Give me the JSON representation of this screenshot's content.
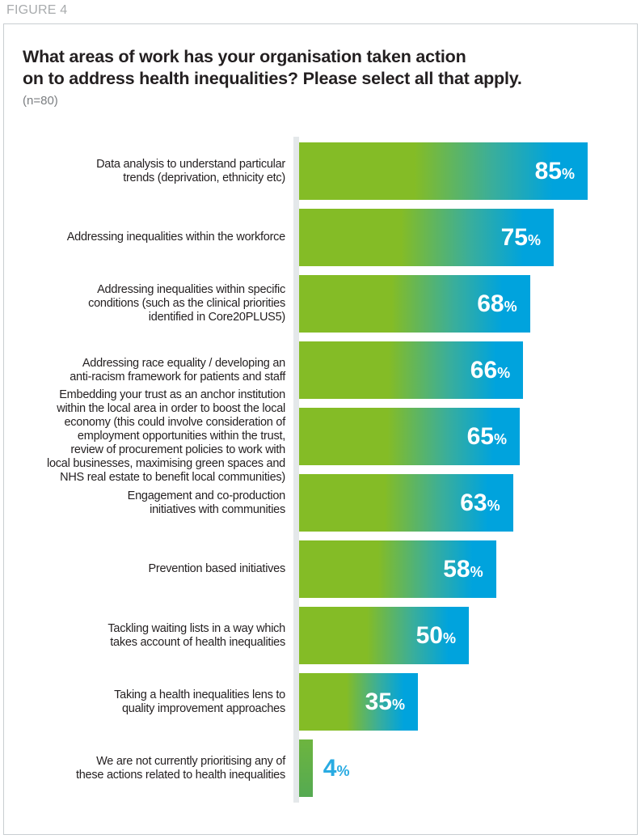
{
  "figure_label": "FIGURE 4",
  "chart_data": {
    "type": "bar",
    "orientation": "horizontal",
    "title_line1": "What areas of work has your organisation taken action",
    "title_line2": "on to address health inequalities? Please select all that apply.",
    "sample_size": "(n=80)",
    "unit": "%",
    "xlim": [
      0,
      100
    ],
    "grid": false,
    "legend": "none",
    "value_labels": "inside-bar-right, white bold; smallest bar labelled outside in blue",
    "categories": [
      "Data analysis to understand particular trends (deprivation, ethnicity etc)",
      "Addressing inequalities within the workforce",
      "Addressing inequalities within specific conditions (such as the clinical priorities identified in Core20PLUS5)",
      "Addressing race equality / developing an anti-racism framework for patients and staff",
      "Embedding your trust as an anchor institution within the local area in order to boost the local economy (this could involve consideration of employment opportunities within the trust, review of procurement policies to work with local businesses, maximising green spaces and NHS real estate to benefit local communities)",
      "Engagement and co-production initiatives with communities",
      "Prevention based initiatives",
      "Tackling waiting lists in a way which takes account of health inequalities",
      "Taking a health inequalities lens to quality improvement approaches",
      "We are not currently prioritising any of these actions related to health inequalities"
    ],
    "values": [
      85,
      75,
      68,
      66,
      65,
      63,
      58,
      50,
      35,
      4
    ],
    "items": [
      {
        "label_lines": [
          "Data analysis to understand particular",
          "trends (deprivation, ethnicity etc)"
        ],
        "value": 85,
        "label_outside": false
      },
      {
        "label_lines": [
          "Addressing inequalities within the workforce"
        ],
        "value": 75,
        "label_outside": false
      },
      {
        "label_lines": [
          "Addressing inequalities within specific",
          "conditions (such as the clinical priorities",
          "identified in Core20PLUS5)"
        ],
        "value": 68,
        "label_outside": false
      },
      {
        "label_lines": [
          "Addressing race equality / developing an",
          "anti-racism framework for patients and staff"
        ],
        "value": 66,
        "label_outside": false
      },
      {
        "label_lines": [
          "Embedding your trust as an anchor institution",
          "within the local area in order to boost the local",
          "economy (this could involve consideration of",
          "employment opportunities within the trust,",
          "review of procurement policies to work with",
          "local businesses, maximising green spaces and",
          "NHS real estate to benefit local communities)"
        ],
        "value": 65,
        "label_outside": false
      },
      {
        "label_lines": [
          "Engagement and co-production",
          "initiatives with communities"
        ],
        "value": 63,
        "label_outside": false
      },
      {
        "label_lines": [
          "Prevention based initiatives"
        ],
        "value": 58,
        "label_outside": false
      },
      {
        "label_lines": [
          "Tackling waiting lists in a way which",
          "takes account of health inequalities"
        ],
        "value": 50,
        "label_outside": false
      },
      {
        "label_lines": [
          "Taking a health inequalities lens to",
          "quality improvement approaches"
        ],
        "value": 35,
        "label_outside": false
      },
      {
        "label_lines": [
          "We are not currently prioritising any of",
          "these actions related to health inequalities"
        ],
        "value": 4,
        "label_outside": true
      }
    ],
    "colors": {
      "bar_gradient_start": "#84bc26",
      "bar_gradient_mid": "#3aae9b",
      "bar_gradient_end": "#00a3dd",
      "small_bar_green": "#63b049",
      "outside_value_label": "#29abe2",
      "inside_value_label": "#ffffff",
      "axis_strip": "#e4e8ea",
      "title_text": "#231f20",
      "figure_label_text": "#a8abad",
      "card_border": "#c9ced1"
    }
  }
}
